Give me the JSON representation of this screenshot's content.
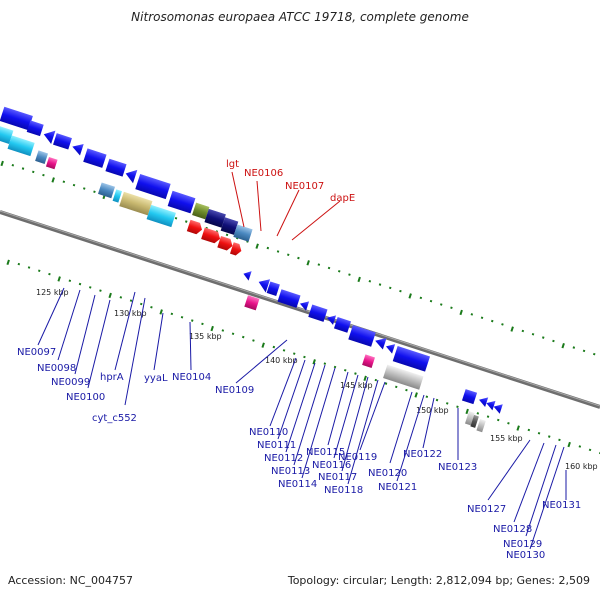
{
  "title": "Nitrosomonas europaea ATCC 19718, complete genome",
  "accession_text": "Accession: NC_004757",
  "summary_text": "Topology: circular; Length: 2,812,094 bp; Genes: 2,509",
  "colors": {
    "backbone": "#7f7f7f",
    "gene_blue": "#1010ee",
    "gene_red": "#ee1010",
    "label_blue": "#1a1aa6",
    "label_red": "#cc1111",
    "tick_green": "#1a7a1a"
  },
  "scale_labels": [
    "125 kbp",
    "130 kbp",
    "135 kbp",
    "140 kbp",
    "145 kbp",
    "150 kbp",
    "155 kbp",
    "160 kbp"
  ],
  "gene_labels_red": [
    "lgt",
    "NE0106",
    "NE0107",
    "dapE"
  ],
  "gene_labels_blue": [
    "NE0097",
    "NE0098",
    "NE0099",
    "NE0100",
    "hprA",
    "cyt_c552",
    "yyaL",
    "NE0104",
    "NE0109",
    "NE0110",
    "NE0111",
    "NE0112",
    "NE0113",
    "NE0114",
    "NE0115",
    "NE0116",
    "NE0117",
    "NE0118",
    "NE0119",
    "NE0120",
    "NE0121",
    "NE0122",
    "NE0123",
    "NE0127",
    "NE0128",
    "NE0129",
    "NE0130",
    "NE0131"
  ]
}
